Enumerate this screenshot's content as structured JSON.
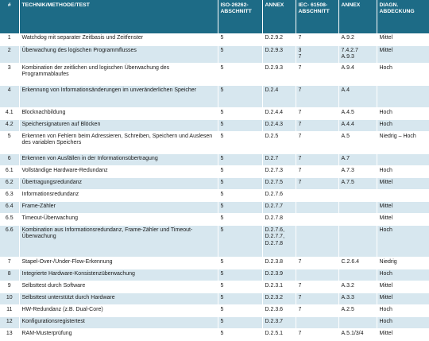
{
  "headers": {
    "num": "#",
    "technique": "TECHNIK/METHODE/TEST",
    "iso": "ISO-26262-ABSCHNITT",
    "annex1": "ANNEX",
    "iec": "IEC- 61508-ABSCHNITT",
    "annex2": "ANNEX",
    "coverage": "DIAGN. ABDECKUNG"
  },
  "rows": [
    {
      "num": "1",
      "technique": "Watchdog mit separater Zeitbasis und Zeitfenster",
      "iso": "5",
      "annex1": [
        "D.2.9.2"
      ],
      "iec": [
        "7"
      ],
      "annex2": [
        "A.9.2"
      ],
      "coverage": "Mittel"
    },
    {
      "num": "2",
      "technique": "Überwachung des logischen Programmflusses",
      "iso": "5",
      "annex1": [
        "D.2.9.3"
      ],
      "iec": [
        "3",
        "7"
      ],
      "annex2": [
        "7.4.2.7",
        "A.9.3"
      ],
      "coverage": "Mittel"
    },
    {
      "num": "3",
      "technique": "Kombination der zeitlichen und logischen Überwachung des Programmablaufes",
      "iso": "5",
      "annex1": [
        "D.2.9.3"
      ],
      "iec": [
        "7"
      ],
      "annex2": [
        "A.9.4"
      ],
      "coverage": "Hoch"
    },
    {
      "num": "4",
      "technique": "Erkennung von Informationsänderungen im unveränderlichen Speicher",
      "iso": "5",
      "annex1": [
        "D.2.4"
      ],
      "iec": [
        "7"
      ],
      "annex2": [
        "A.4"
      ],
      "coverage": ""
    },
    {
      "num": "4.1",
      "technique": "Blocknachbildung",
      "iso": "5",
      "annex1": [
        "D.2.4.4"
      ],
      "iec": [
        "7"
      ],
      "annex2": [
        "A.4.5"
      ],
      "coverage": "Hoch"
    },
    {
      "num": "4.2",
      "technique": "Speichersignaturen auf Blöcken",
      "iso": "5",
      "annex1": [
        "D.2.4.3"
      ],
      "iec": [
        "7"
      ],
      "annex2": [
        "A.4.4"
      ],
      "coverage": "Hoch"
    },
    {
      "num": "5",
      "technique": "Erkennen von Fehlern beim Adressieren, Schreiben, Speichern und Auslesen des variablen Speichers",
      "iso": "5",
      "annex1": [
        "D.2.5"
      ],
      "iec": [
        "7"
      ],
      "annex2": [
        "A.5"
      ],
      "coverage": "Niedrig – Hoch"
    },
    {
      "num": "6",
      "technique": "Erkennen von Ausfällen in der Informationsübertragung",
      "iso": "5",
      "annex1": [
        "D.2.7"
      ],
      "iec": [
        "7"
      ],
      "annex2": [
        "A.7"
      ],
      "coverage": ""
    },
    {
      "num": "6.1",
      "technique": "Vollständige Hardware-Redundanz",
      "iso": "5",
      "annex1": [
        "D.2.7.3"
      ],
      "iec": [
        "7"
      ],
      "annex2": [
        "A.7.3"
      ],
      "coverage": "Hoch"
    },
    {
      "num": "6.2",
      "technique": "Übertragungsredundanz",
      "iso": "5",
      "annex1": [
        "D.2.7.5"
      ],
      "iec": [
        "7"
      ],
      "annex2": [
        "A.7.5"
      ],
      "coverage": "Mittel"
    },
    {
      "num": "6.3",
      "technique": "Informationsredundanz",
      "iso": "5",
      "annex1": [
        "D.2.7.6"
      ],
      "iec": [],
      "annex2": [],
      "coverage": ""
    },
    {
      "num": "6.4",
      "technique": "Frame-Zähler",
      "iso": "5",
      "annex1": [
        "D.2.7.7"
      ],
      "iec": [],
      "annex2": [],
      "coverage": "Mittel"
    },
    {
      "num": "6.5",
      "technique": "Timeout-Überwachung",
      "iso": "5",
      "annex1": [
        "D.2.7.8"
      ],
      "iec": [],
      "annex2": [],
      "coverage": "Mittel"
    },
    {
      "num": "6.6",
      "technique": "Kombination aus Informationsredundanz, Frame-Zähler und Timeout-Überwachung",
      "iso": "5",
      "annex1": [
        "D.2.7.6,",
        "D.2.7.7,",
        "D.2.7.8"
      ],
      "iec": [],
      "annex2": [],
      "coverage": "Hoch"
    },
    {
      "num": "7",
      "technique": "Stapel-Over-/Under-Flow-Erkennung",
      "iso": "5",
      "annex1": [
        "D.2.3.8"
      ],
      "iec": [
        "7"
      ],
      "annex2": [
        "C.2.6.4"
      ],
      "coverage": "Niedrig"
    },
    {
      "num": "8",
      "technique": "Integrierte Hardware-Konsistenzüberwachung",
      "iso": "5",
      "annex1": [
        "D.2.3.9"
      ],
      "iec": [],
      "annex2": [],
      "coverage": "Hoch"
    },
    {
      "num": "9",
      "technique": "Selbsttest durch Software",
      "iso": "5",
      "annex1": [
        "D.2.3.1"
      ],
      "iec": [
        "7"
      ],
      "annex2": [
        "A.3.2"
      ],
      "coverage": "Mittel"
    },
    {
      "num": "10",
      "technique": "Selbsttest unterstützt durch Hardware",
      "iso": "5",
      "annex1": [
        "D.2.3.2"
      ],
      "iec": [
        "7"
      ],
      "annex2": [
        "A.3.3"
      ],
      "coverage": "Mittel"
    },
    {
      "num": "11",
      "technique": "HW-Redundanz (z.B. Dual-Core)",
      "iso": "5",
      "annex1": [
        "D.2.3.6"
      ],
      "iec": [
        "7"
      ],
      "annex2": [
        "A.2.5"
      ],
      "coverage": "Hoch"
    },
    {
      "num": "12",
      "technique": "Konfigurationsregistertest",
      "iso": "5",
      "annex1": [
        "D.2.3.7"
      ],
      "iec": [],
      "annex2": [],
      "coverage": "Hoch"
    },
    {
      "num": "13",
      "technique": "RAM-Musterprüfung",
      "iso": "5",
      "annex1": [
        "D.2.5.1"
      ],
      "iec": [
        "7"
      ],
      "annex2": [
        "A.5.1/3/4"
      ],
      "coverage": "Mittel"
    }
  ]
}
